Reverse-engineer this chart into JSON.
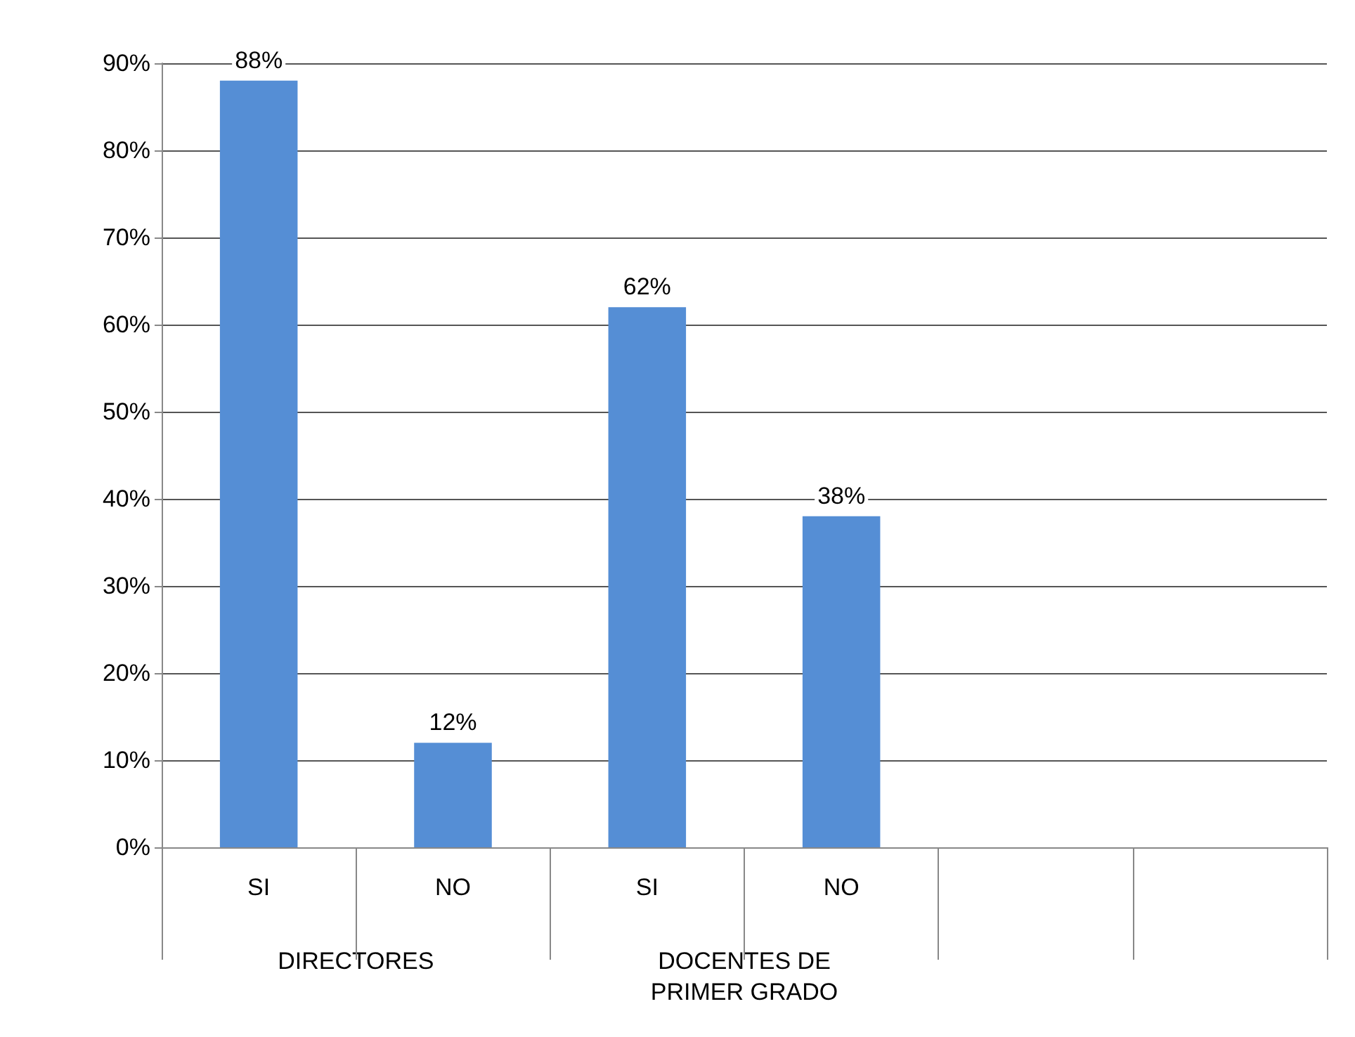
{
  "chart_data": {
    "type": "bar",
    "categories": [
      "SI",
      "NO",
      "SI",
      "NO",
      null,
      null
    ],
    "values": [
      88,
      12,
      62,
      38,
      null,
      null
    ],
    "value_labels": [
      "88%",
      "12%",
      "62%",
      "38%",
      null,
      null
    ],
    "color": "#558ed5",
    "ylim": [
      0,
      90
    ],
    "yticks": [
      {
        "value": 0,
        "label": "0%"
      },
      {
        "value": 10,
        "label": "10%"
      },
      {
        "value": 20,
        "label": "20%"
      },
      {
        "value": 30,
        "label": "30%"
      },
      {
        "value": 40,
        "label": "40%"
      },
      {
        "value": 50,
        "label": "50%"
      },
      {
        "value": 60,
        "label": "60%"
      },
      {
        "value": 70,
        "label": "70%"
      },
      {
        "value": 80,
        "label": "80%"
      },
      {
        "value": 90,
        "label": "90%"
      }
    ],
    "annotations": [
      "DIRECTORES",
      "DOCENTES DE\nPRIMER GRADO"
    ],
    "grid": true
  }
}
